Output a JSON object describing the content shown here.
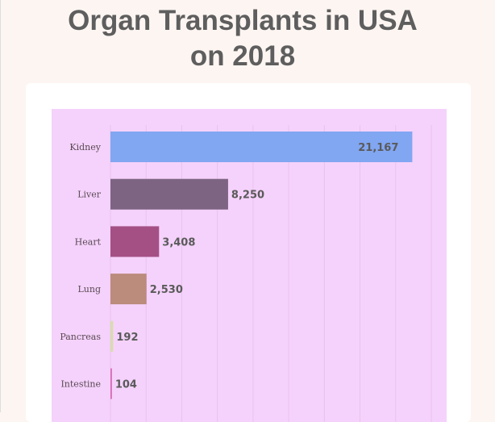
{
  "chart_data": {
    "type": "bar",
    "orientation": "horizontal",
    "title": "Organ Transplants in USA on 2018",
    "title_lines": [
      "Organ Transplants in USA",
      "on 2018"
    ],
    "categories": [
      "Kidney",
      "Liver",
      "Heart",
      "Lung",
      "Pancreas",
      "Intestine"
    ],
    "values": [
      21167,
      8250,
      3408,
      2530,
      192,
      104
    ],
    "value_labels": [
      "21,167",
      "8,250",
      "3,408",
      "2,530",
      "192",
      "104"
    ],
    "colors": [
      "#81a6f2",
      "#7e6483",
      "#a55085",
      "#bb8b7c",
      "#d8dcae",
      "#d86bb8"
    ],
    "xlim": [
      0,
      22500
    ],
    "grid_step": 2500,
    "grid": true,
    "plot_background": "#f5d2fb",
    "xlabel": "",
    "ylabel": ""
  }
}
